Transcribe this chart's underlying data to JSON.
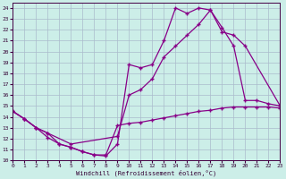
{
  "xlabel": "Windchill (Refroidissement éolien,°C)",
  "bg_color": "#cceee8",
  "line_color": "#880088",
  "grid_color": "#aabbcc",
  "xlim": [
    0,
    23
  ],
  "ylim": [
    10,
    24.5
  ],
  "yticks": [
    10,
    11,
    12,
    13,
    14,
    15,
    16,
    17,
    18,
    19,
    20,
    21,
    22,
    23,
    24
  ],
  "xticks": [
    0,
    1,
    2,
    3,
    4,
    5,
    6,
    7,
    8,
    9,
    10,
    11,
    12,
    13,
    14,
    15,
    16,
    17,
    18,
    19,
    20,
    21,
    22,
    23
  ],
  "series": [
    {
      "x": [
        0,
        1,
        2,
        3,
        4,
        5,
        6,
        7,
        8,
        9,
        10,
        11,
        12,
        13,
        14,
        15,
        16,
        17,
        18,
        19,
        20,
        21,
        22,
        23
      ],
      "y": [
        14.5,
        13.8,
        13.0,
        12.5,
        11.5,
        11.2,
        10.8,
        10.5,
        10.5,
        13.2,
        13.4,
        13.5,
        13.7,
        13.9,
        14.1,
        14.3,
        14.5,
        14.6,
        14.8,
        14.9,
        14.9,
        14.9,
        14.9,
        14.8
      ]
    },
    {
      "x": [
        0,
        1,
        2,
        3,
        4,
        5,
        6,
        7,
        8,
        9,
        10,
        11,
        12,
        13,
        14,
        15,
        16,
        17,
        18,
        19,
        20,
        21,
        22,
        23
      ],
      "y": [
        14.5,
        13.8,
        13.0,
        12.1,
        11.5,
        11.2,
        10.8,
        10.5,
        10.4,
        11.5,
        18.8,
        18.5,
        18.8,
        21.0,
        24.0,
        23.5,
        24.0,
        23.8,
        22.2,
        20.5,
        15.5,
        15.5,
        15.2,
        15.0
      ]
    },
    {
      "x": [
        0,
        1,
        2,
        3,
        5,
        9,
        10,
        11,
        12,
        13,
        14,
        15,
        16,
        17,
        18,
        19,
        20,
        23
      ],
      "y": [
        14.5,
        13.8,
        13.0,
        12.5,
        11.5,
        12.2,
        16.0,
        16.5,
        17.5,
        19.5,
        20.5,
        21.5,
        22.5,
        23.8,
        21.8,
        21.5,
        20.5,
        15.0
      ]
    }
  ]
}
